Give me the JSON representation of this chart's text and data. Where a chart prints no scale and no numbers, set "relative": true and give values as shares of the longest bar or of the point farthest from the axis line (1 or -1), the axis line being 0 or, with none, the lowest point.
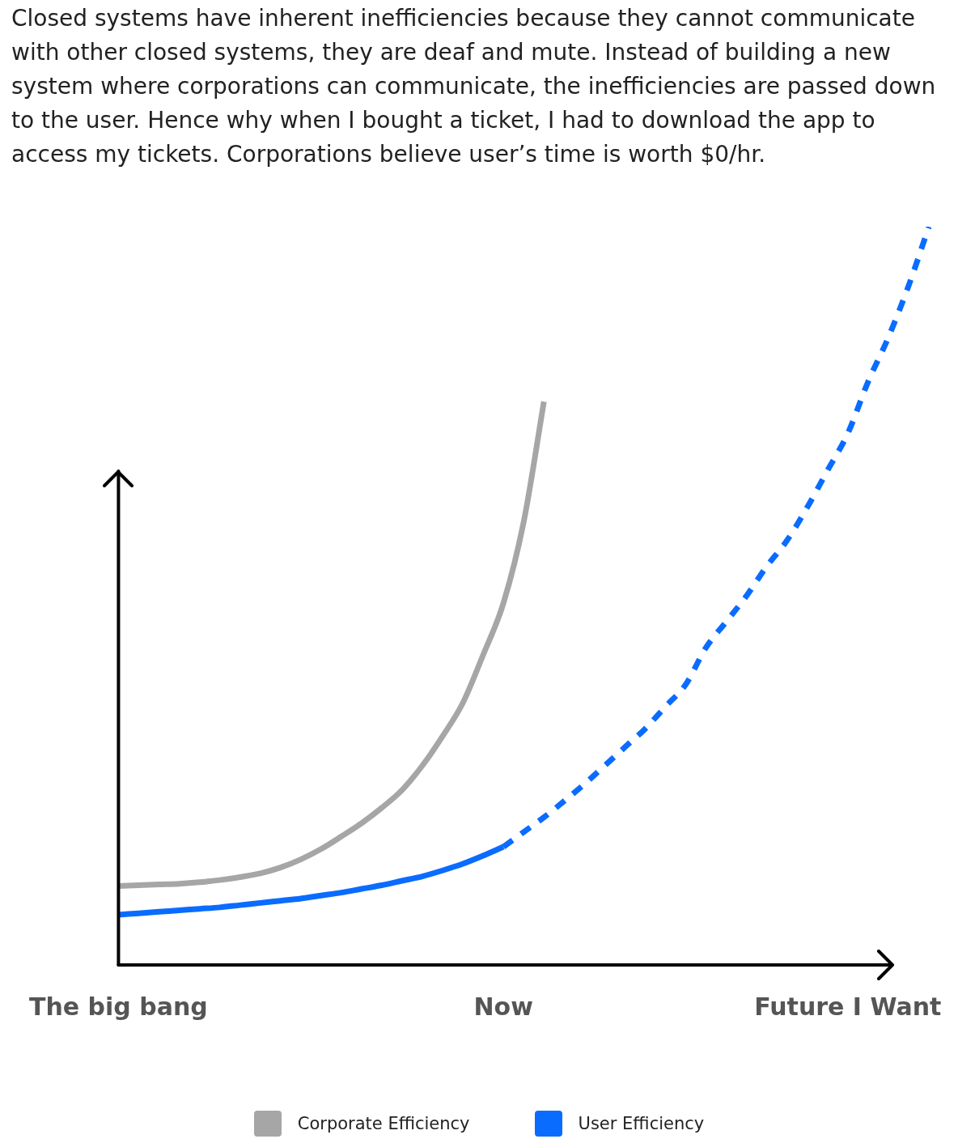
{
  "chart_data": {
    "type": "line",
    "relative": true,
    "grid": false,
    "marker": "none",
    "line_style": "solid",
    "legend": "bottom",
    "annotations": [
      "Closed systems have inherent inefficiencies because they cannot communicate with other closed systems, they are deaf and mute. Instead of building a new system where corporations can communicate, the inefficiencies are passed down to the user. Hence why when I bought a ticket, I had to download the app to access my tickets. Corporations believe user’s time is worth $0/hr."
    ],
    "categories": [
      "The big bang",
      null,
      null,
      null,
      null,
      null,
      null,
      null,
      null,
      null,
      null,
      null,
      null,
      null,
      null,
      null,
      null,
      null,
      null,
      "Now",
      null,
      null,
      null,
      null,
      null,
      null,
      null,
      null,
      null,
      null,
      null,
      null,
      null,
      null,
      null,
      null,
      "Future I Want",
      null,
      null,
      null,
      null
    ],
    "series": [
      {
        "name": "Corporate Efficiency",
        "color": "#a6a6a6",
        "values": [
          0.107,
          0.108,
          0.109,
          0.11,
          0.112,
          0.115,
          0.119,
          0.124,
          0.132,
          0.143,
          0.157,
          0.174,
          0.192,
          0.213,
          0.237,
          0.27,
          0.31,
          0.355,
          0.42,
          0.49,
          0.6,
          0.763,
          null,
          null,
          null,
          null,
          null,
          null,
          null,
          null,
          null,
          null,
          null,
          null,
          null,
          null,
          null,
          null,
          null,
          null,
          null
        ]
      },
      {
        "name": "User Efficiency",
        "color": "#0a6cff",
        "values": [
          0.068,
          0.07,
          0.072,
          0.074,
          0.076,
          0.078,
          0.081,
          0.084,
          0.087,
          0.09,
          0.094,
          0.098,
          0.103,
          0.108,
          0.114,
          0.12,
          0.128,
          0.137,
          0.148,
          0.16,
          null,
          null,
          null,
          null,
          null,
          null,
          null,
          null,
          null,
          null,
          null,
          null,
          null,
          null,
          null,
          null,
          null,
          null,
          null,
          null,
          null
        ]
      },
      {
        "color": "#0a6cff",
        "line_style": "dashed",
        "values": [
          null,
          null,
          null,
          null,
          null,
          null,
          null,
          null,
          null,
          null,
          null,
          null,
          null,
          null,
          null,
          null,
          null,
          null,
          null,
          0.16,
          0.18,
          0.2,
          0.222,
          0.245,
          0.27,
          0.295,
          0.32,
          0.35,
          0.38,
          0.43,
          0.465,
          0.5,
          0.54,
          0.575,
          0.62,
          0.67,
          0.72,
          0.79,
          0.85,
          0.92,
          1
        ]
      }
    ]
  }
}
